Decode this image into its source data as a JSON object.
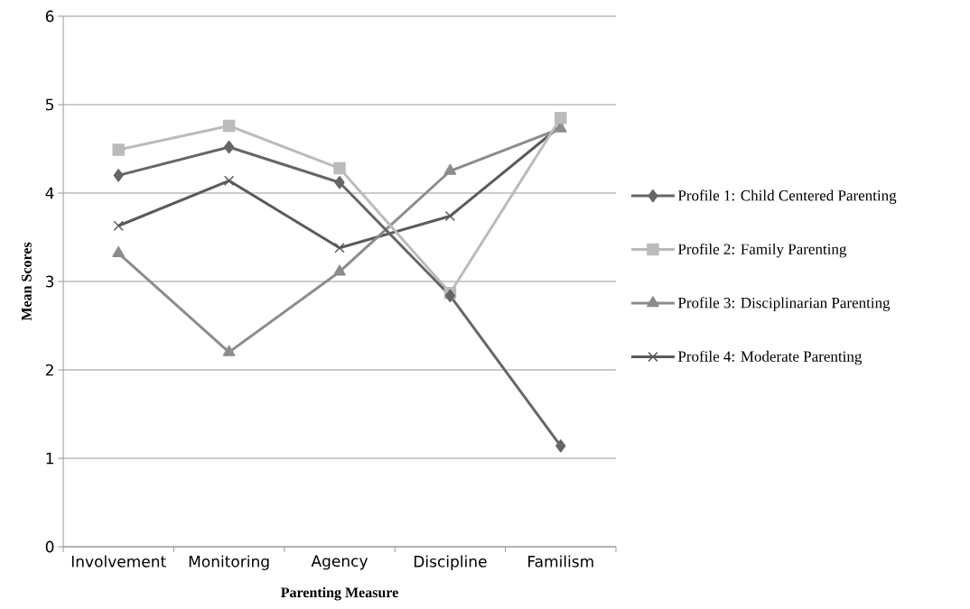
{
  "chart_data": {
    "type": "line",
    "xlabel": "Parenting Measure",
    "ylabel": "Mean Scores",
    "categories": [
      "Involvement",
      "Monitoring",
      "Agency",
      "Discipline",
      "Familism"
    ],
    "series": [
      {
        "name": "Profile 1: Child Centered Parenting",
        "color": "#666666",
        "marker": "diamond",
        "values": [
          4.2,
          4.52,
          4.12,
          2.84,
          1.14
        ]
      },
      {
        "name": "Profile 2: Family Parenting",
        "color": "#bbbbbb",
        "marker": "square",
        "values": [
          4.49,
          4.76,
          4.28,
          2.87,
          4.85
        ]
      },
      {
        "name": "Profile 3: Disciplinarian Parenting",
        "color": "#8c8c8c",
        "marker": "triangle",
        "values": [
          3.32,
          2.2,
          3.11,
          4.25,
          4.73
        ]
      },
      {
        "name": "Profile 4: Moderate Parenting",
        "color": "#5a5a5a",
        "marker": "cross",
        "values": [
          3.63,
          4.14,
          3.38,
          3.74,
          4.76
        ]
      }
    ],
    "ylim": [
      0,
      6
    ],
    "yticks": [
      0,
      1,
      2,
      3,
      4,
      5,
      6
    ],
    "grid": "y",
    "legend": "right",
    "line_style": "solid"
  }
}
